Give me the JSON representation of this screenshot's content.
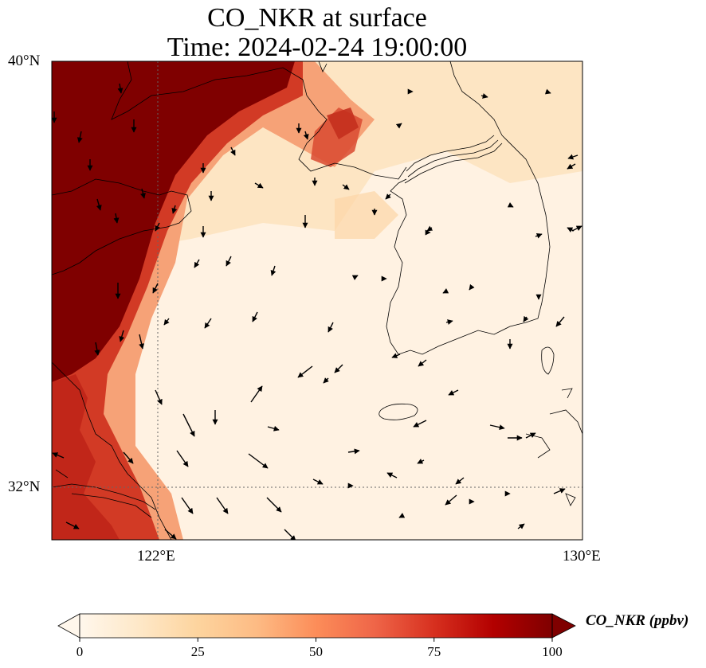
{
  "figure": {
    "title_line1": "CO_NKR at surface",
    "title_line2": "Time: 2024-02-24 19:00:00"
  },
  "map": {
    "lon_range": [
      120,
      130
    ],
    "lat_range": [
      31,
      40
    ],
    "x_ticks": [
      {
        "lon": 122,
        "label": "122°E"
      },
      {
        "lon": 130,
        "label": "130°E"
      }
    ],
    "y_ticks": [
      {
        "lat": 40,
        "label": "40°N"
      },
      {
        "lat": 32,
        "label": "32°N"
      }
    ],
    "gridline_lon": 122,
    "gridline_lat": 32,
    "field_description_colors": {
      "very_high": "#7a0000",
      "high": "#c0281d",
      "medium": "#f08a5d",
      "low": "#fdd9a8",
      "very_low": "#fff5e8"
    }
  },
  "colorbar": {
    "label": "CO_NKR (ppbv)",
    "min": 0,
    "max": 100,
    "ticks": [
      {
        "value": 0,
        "label": "0"
      },
      {
        "value": 25,
        "label": "25"
      },
      {
        "value": 50,
        "label": "50"
      },
      {
        "value": 75,
        "label": "75"
      },
      {
        "value": 100,
        "label": "100"
      }
    ],
    "colors": [
      "#fff7ec",
      "#fee8c8",
      "#fdd49e",
      "#fdbb84",
      "#fc8d59",
      "#ef6548",
      "#d7301f",
      "#b30000",
      "#7f0000"
    ],
    "extend": "both"
  }
}
